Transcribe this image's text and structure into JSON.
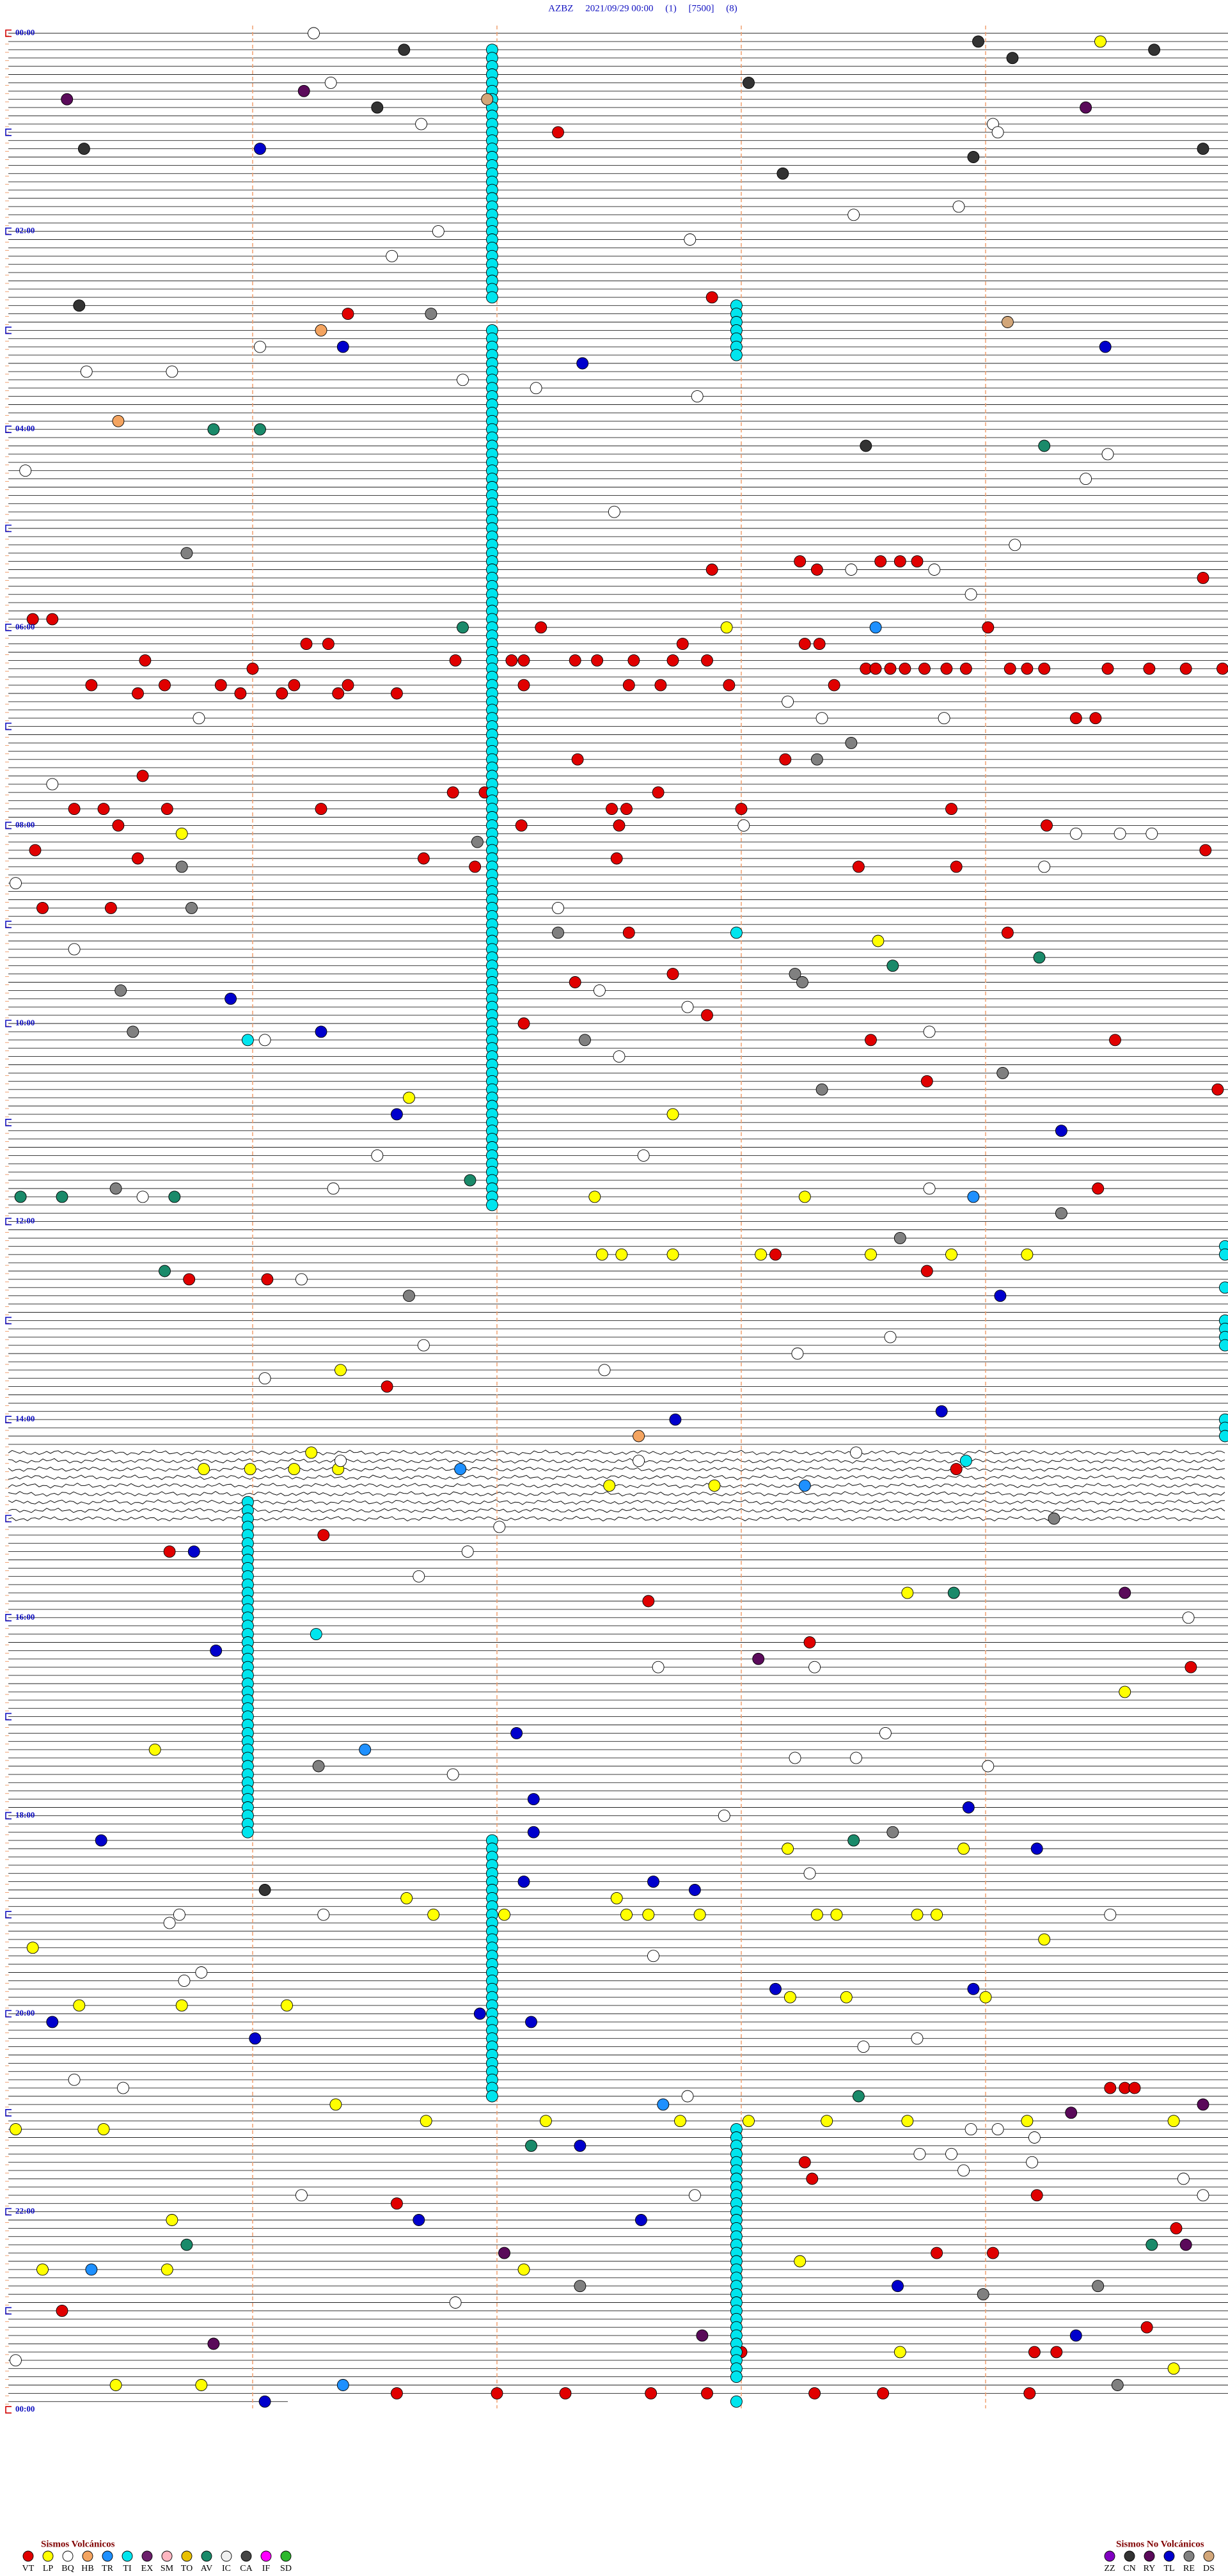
{
  "chart_data": {
    "type": "helicorder",
    "title": "AZBZ     2021/09/29 00:00     (1)     [7500]     (8)",
    "time_labels": [
      "00:00",
      "02:00",
      "04:00",
      "06:00",
      "08:00",
      "10:00",
      "12:00",
      "14:00",
      "16:00",
      "18:00",
      "20:00",
      "22:00",
      "00:00"
    ],
    "volcanic": {
      "title": "Sismos Volcánicos",
      "series": [
        {
          "name": "VT",
          "color": "#e00000",
          "values": [
            62.25,
            162.88,
            171.39,
            327.88,
            334.89,
            323.24,
            328.31,
            323.57,
            323.65,
            323.72,
            355.1,
            355.18,
            362.18,
            364.01,
            371.22,
            371.31,
            372.76,
            373.26,
            373.32,
            380.56,
            381.83,
            382.06,
            382.11,
            382.32,
            382.41,
            382.56,
            382.72,
            382.86,
            386.0,
            388.51,
            388.55,
            388.61,
            388.67,
            388.75,
            388.84,
            388.92,
            389.1,
            389.17,
            389.24,
            389.5,
            389.67,
            389.82,
            389.97,
            395.34,
            395.64,
            395.87,
            396.17,
            396.39,
            397.11,
            397.54,
            397.67,
            397.95,
            398.38,
            400.53,
            400.95,
            401.12,
            401.35,
            401.59,
            419.37,
            419.45,
            442.33,
            443.18,
            450.55,
            461.82,
            461.95,
            462.66,
            470.27,
            470.39,
            470.65,
            471.28,
            472.47,
            472.53,
            473.0,
            473.86,
            480.45,
            482.1,
            482.5,
            484.25,
            495.11,
            500.53,
            501.7,
            502.49,
            506.91,
            508.48,
            508.88,
            499.9,
            530.14,
            530.42,
            547.54,
            549.09,
            577.32,
            572.72,
            597.86,
            602.11,
            613.53,
            614.53,
            638.76,
            644.95,
            704.46,
            743.14,
            753.76,
            755.74,
            756.06,
            821.55,
            873.88,
            920.66,
            911.29,
            952.62,
            978.28,
            994.84,
            1293.26,
            1303.29,
            1314.21,
            1316.59,
            1249.51,
            1249.57,
            1249.61,
            1334.78,
            1348.8,
            1349.03,
            1380.22,
            1394.66,
            1408.0,
            1409.2,
            1409.29,
            1431.59,
            1432.0,
            1432.28,
            1432.63,
            1432.86,
            1433.3,
            1433.58,
            1434.18
          ]
        },
        {
          "name": "LP",
          "color": "#ffff00",
          "values": [
            9.47,
            362.94,
            485.71,
            553.56,
            646.64,
            657.72,
            707.4,
            708.26,
            742.43,
            742.51,
            742.72,
            743.08,
            743.53,
            743.86,
            744.17,
            811.36,
            861.24,
            870.8,
            870.99,
            871.17,
            871.35,
            882.46,
            882.89,
            948.68,
            1009.57,
            1040.6,
            1103.19,
            1103.91,
            1131.63,
            1132.49,
            1141.74,
            1142.03,
            1142.53,
            1142.62,
            1142.83,
            1143.31,
            1143.39,
            1143.72,
            1143.8,
            1159.24,
            1160.1,
            1195.29,
            1195.71,
            1196.14,
            1193.2,
            1193.43,
            1194.0,
            1256.34,
            1266.71,
            1267.2,
            1267.75,
            1268.03,
            1268.35,
            1268.68,
            1269.17,
            1269.77,
            1270.03,
            1270.39,
            1325.67,
            1355.14,
            1355.65,
            1357.11,
            1353.24,
            1408.65,
            1419.77,
            1425.44,
            1425.79
          ]
        },
        {
          "name": "BQ",
          "color": "#ffffff",
          "values": [
            1.25,
            31.32,
            56.69,
            59.03,
            64.05,
            113.46,
            108.89,
            121.76,
            127.79,
            136.57,
            191.03,
            205.32,
            205.67,
            211.86,
            217.16,
            222.82,
            259.5,
            265.07,
            274.41,
            292.48,
            314.12,
            328.45,
            328.79,
            343.94,
            408.19,
            415.78,
            418.33,
            418.83,
            455.18,
            483.01,
            489.37,
            489.55,
            489.68,
            509.24,
            515.03,
            532.25,
            555.27,
            582.42,
            592.78,
            608.77,
            611.05,
            622.5,
            682.6,
            681.51,
            701.33,
            705.55,
            703.77,
            756.2,
            793.61,
            796.7,
            803.23,
            812.44,
            816.05,
            863.47,
            867.58,
            866.36,
            907.01,
            921.88,
            936.68,
            964.83,
            992.66,
            993.3,
            1033.59,
            1048.22,
            1048.47,
            1054.01,
            1056.82,
            1082.93,
            1118.28,
            1140.7,
            1145.66,
            1141.29,
            1144.51,
            1167.64,
            1175.79,
            1180.72,
            1218.72,
            1223.5,
            1240.27,
            1245.47,
            1252.78,
            1273.94,
            1274.05,
            1279.2,
            1288.73,
            1288.86,
            1294.19,
            1298.91,
            1304.81,
            1311.2,
            1312.81,
            1314.89,
            1376.83,
            1410.03
          ]
        },
        {
          "name": "HB",
          "color": "#f4a460",
          "values": [
            181.28,
            235.45,
            852.58
          ]
        },
        {
          "name": "TR",
          "color": "#1e90ff",
          "values": [
            363.55,
            708.95,
            871.85,
            883.26,
            1041.46,
            1257.68,
            1355.34,
            1426.37
          ]
        },
        {
          "name": "TI",
          "color": "#00e5ee",
          "values": [
            11.98,
            16.98,
            21.98,
            26.98,
            31.98,
            36.98,
            41.98,
            46.98,
            51.98,
            56.98,
            61.98,
            66.98,
            71.98,
            76.98,
            81.98,
            86.98,
            91.98,
            96.98,
            101.98,
            106.98,
            111.98,
            116.98,
            121.98,
            126.98,
            131.98,
            136.98,
            141.98,
            146.98,
            151.98,
            156.98,
            161.98,
            181.98,
            186.98,
            191.98,
            196.98,
            201.98,
            206.98,
            211.98,
            216.98,
            221.98,
            226.98,
            231.98,
            236.98,
            241.98,
            246.98,
            251.98,
            256.98,
            261.98,
            266.98,
            271.98,
            276.98,
            281.98,
            286.98,
            291.98,
            296.98,
            301.98,
            306.98,
            311.98,
            316.98,
            321.98,
            326.98,
            331.98,
            336.98,
            341.98,
            346.98,
            351.98,
            356.98,
            361.98,
            366.98,
            371.98,
            376.98,
            381.98,
            386.98,
            391.98,
            396.98,
            401.98,
            406.98,
            411.98,
            416.98,
            421.98,
            426.98,
            431.98,
            436.98,
            441.98,
            446.98,
            451.98,
            456.98,
            461.98,
            466.98,
            471.98,
            476.98,
            481.98,
            486.98,
            491.98,
            496.98,
            501.98,
            506.98,
            511.98,
            516.98,
            521.98,
            526.98,
            531.98,
            536.98,
            541.98,
            546.98,
            551.98,
            556.98,
            561.98,
            566.98,
            571.98,
            576.98,
            581.98,
            586.98,
            591.98,
            596.98,
            601.98,
            606.98,
            611.98,
            616.98,
            621.98,
            626.98,
            631.98,
            636.98,
            641.98,
            646.98,
            651.98,
            656.98,
            661.98,
            666.98,
            671.98,
            676.98,
            681.98,
            686.98,
            691.98,
            696.98,
            701.98,
            706.98,
            711.98,
            167.98,
            172.98,
            177.98,
            182.98,
            187.98,
            192.98,
            197.98,
            547.98,
            610.98,
            971.26,
            739.98,
            744.98,
            764.98,
            784.98,
            789.98,
            794.98,
            799.98,
            844.98,
            849.98,
            854.98,
            868.92,
            890.98,
            895.98,
            900.98,
            905.98,
            910.98,
            915.98,
            920.98,
            925.98,
            930.98,
            935.98,
            940.98,
            945.98,
            950.98,
            955.98,
            960.98,
            965.98,
            970.98,
            975.98,
            980.98,
            985.98,
            990.98,
            995.98,
            1000.98,
            1005.98,
            1010.98,
            1015.98,
            1020.98,
            1025.98,
            1030.98,
            1035.98,
            1040.98,
            1045.98,
            1050.98,
            1055.98,
            1060.98,
            1065.98,
            1070.98,
            1075.98,
            1080.98,
            1085.98,
            1090.98,
            1096.98,
            1101.98,
            1106.98,
            1111.98,
            1116.98,
            1121.98,
            1126.98,
            1131.98,
            1136.98,
            1141.98,
            1146.98,
            1151.98,
            1156.98,
            1161.98,
            1166.98,
            1171.98,
            1176.98,
            1181.98,
            1186.98,
            1191.98,
            1196.98,
            1201.98,
            1206.98,
            1211.98,
            1216.98,
            1221.98,
            1226.98,
            1231.98,
            1236.98,
            1241.98,
            1246.98,
            1251.98,
            1272.98,
            1277.98,
            1282.98,
            1287.98,
            1292.98,
            1297.98,
            1302.98,
            1307.98,
            1312.98,
            1317.98,
            1322.98,
            1327.98,
            1332.98,
            1337.98,
            1342.98,
            1347.98,
            1352.98,
            1357.98,
            1362.98,
            1367.98,
            1372.98,
            1377.98,
            1382.98,
            1387.98,
            1392.98,
            1397.98,
            1402.98,
            1407.98,
            1412.98,
            1417.98,
            1422.98,
            1437.98
          ]
        },
        {
          "name": "EX",
          "color": "#6b1f6b",
          "values": []
        },
        {
          "name": "SM",
          "color": "#ffb6c1",
          "values": []
        },
        {
          "name": "TO",
          "color": "#e8c000",
          "values": []
        },
        {
          "name": "AV",
          "color": "#1a8a6a",
          "values": [
            240.84,
            241.03,
            254.24,
            361.86,
            564.22,
            568.62,
            705.05,
            705.22,
            705.68,
            696.89,
            750.64,
            948.87,
            1098.46,
            1253.48,
            1282.14,
            1340.73,
            1344.68
          ]
        },
        {
          "name": "IC",
          "color": "#f0f0f0",
          "values": []
        },
        {
          "name": "CA",
          "color": "#444444",
          "values": []
        },
        {
          "name": "IF",
          "color": "#ff00ff",
          "values": []
        },
        {
          "name": "SD",
          "color": "#2db82d",
          "values": []
        }
      ]
    },
    "non_volcanic": {
      "title": "Sismos No Volcánicos",
      "series": [
        {
          "name": "ZZ",
          "color": "#8000c0",
          "values": []
        },
        {
          "name": "CN",
          "color": "#333333",
          "values": [
            11.62,
            8.97,
            14.69,
            19.11,
            33.03,
            46.51,
            70.31,
            78.95,
            74.89,
            88.17,
            165.29,
            253.51,
            1126.05
          ]
        },
        {
          "name": "RY",
          "color": "#5a0a5a",
          "values": [
            40.24,
            36.21,
            49.41,
            949.57,
            988.07,
            1259.89,
            1264.35,
            1344.82,
            1347.03,
            1397.84,
            1400.84
          ]
        },
        {
          "name": "TL",
          "color": "#0000cc",
          "values": [
            71.03,
            191.37,
            194.49,
            202.35,
            585.91,
            606.28,
            656.59,
            669.31,
            769.06,
            842.73,
            838.82,
            920.76,
            980.85,
            1032.08,
            1072.15,
            1078.93,
            1092.15,
            1095.38,
            1104.21,
            1122.11,
            1122.64,
            1127.81,
            1188.14,
            1188.95,
            1201.93,
            1207.14,
            1205.18,
            1216.01,
            1282.34,
            1326.68,
            1327.59,
            1368.64,
            1399.37,
            1436.05
          ]
        },
        {
          "name": "RE",
          "color": "#808080",
          "values": [
            171.73,
            315.73,
            443.31,
            433.45,
            491.92,
            505.71,
            530.75,
            547.25,
            573.22,
            578.25,
            580.46,
            605.51,
            612.36,
            634.07,
            643.33,
            700.44,
            719.31,
            733.65,
            766.64,
            904.28,
            1051.27,
            1093.62,
            1367.34,
            1373.99,
            1369.46,
            1429.54
          ]
        },
        {
          "name": "DS",
          "color": "#d2a679",
          "values": [
            41.96,
            179.09
          ]
        }
      ]
    }
  }
}
